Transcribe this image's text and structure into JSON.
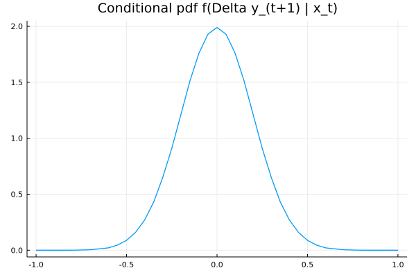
{
  "chart_data": {
    "type": "line",
    "title": "Conditional pdf f(Delta y_(t+1) | x_t)",
    "xlabel": "",
    "ylabel": "",
    "xlim": [
      -1.05,
      1.05
    ],
    "ylim": [
      -0.06,
      2.05
    ],
    "grid": true,
    "legend": "none",
    "x_ticks": [
      -1.0,
      -0.5,
      0.0,
      0.5,
      1.0
    ],
    "x_tick_labels": [
      "-1.0",
      "-0.5",
      "0.0",
      "0.5",
      "1.0"
    ],
    "y_ticks": [
      0.0,
      0.5,
      1.0,
      1.5,
      2.0
    ],
    "y_tick_labels": [
      "0.0",
      "0.5",
      "1.0",
      "1.5",
      "2.0"
    ],
    "series": [
      {
        "color": "#009af9",
        "x": [
          -1.0,
          -0.9,
          -0.8,
          -0.7,
          -0.6,
          -0.55,
          -0.5,
          -0.45,
          -0.4,
          -0.35,
          -0.3,
          -0.25,
          -0.2,
          -0.15,
          -0.1,
          -0.05,
          0.0,
          0.05,
          0.1,
          0.15,
          0.2,
          0.25,
          0.3,
          0.35,
          0.4,
          0.45,
          0.5,
          0.55,
          0.6,
          0.7,
          0.8,
          0.9,
          1.0
        ],
        "y": [
          0.0,
          0.0,
          0.0,
          0.004,
          0.021,
          0.046,
          0.088,
          0.16,
          0.27,
          0.43,
          0.65,
          0.91,
          1.21,
          1.51,
          1.76,
          1.93,
          1.99,
          1.93,
          1.76,
          1.51,
          1.21,
          0.91,
          0.65,
          0.43,
          0.27,
          0.16,
          0.088,
          0.046,
          0.021,
          0.004,
          0.0,
          0.0,
          0.0
        ]
      }
    ]
  }
}
